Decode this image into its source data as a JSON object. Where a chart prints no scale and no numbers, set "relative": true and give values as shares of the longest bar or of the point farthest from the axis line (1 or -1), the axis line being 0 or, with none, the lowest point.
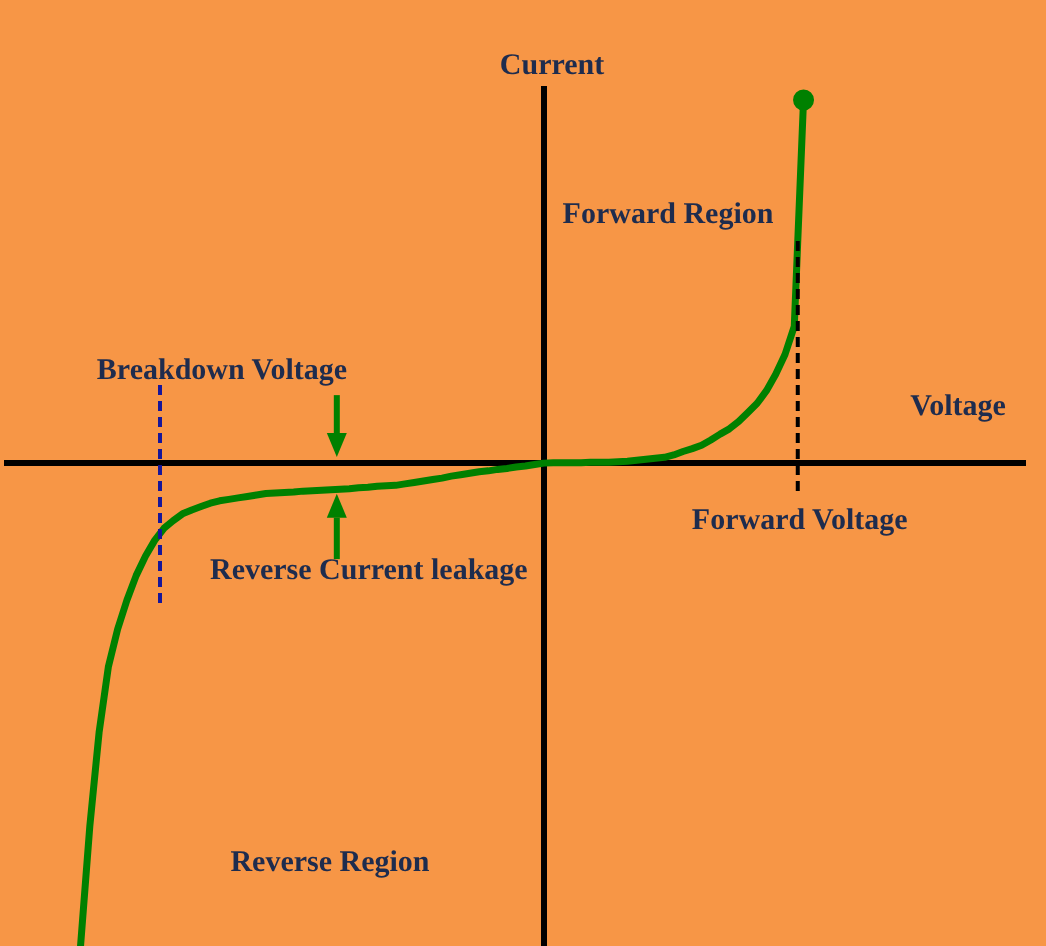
{
  "chart_data": {
    "type": "line",
    "relative": true,
    "xlabel": "Voltage",
    "ylabel": "Current",
    "categories": [
      null,
      null,
      null,
      null,
      null,
      null,
      null,
      null,
      null,
      null,
      null,
      null,
      null,
      null,
      null,
      null,
      null,
      null,
      null,
      null,
      null,
      null,
      null,
      null,
      null,
      null,
      null,
      null,
      null,
      null,
      null,
      null,
      null,
      null,
      null,
      null,
      null,
      null,
      null,
      null,
      null,
      null,
      null,
      null,
      null,
      null,
      null,
      null,
      null,
      null,
      null,
      null,
      null,
      null,
      null,
      null,
      null,
      null,
      null,
      null,
      null,
      null,
      null,
      null,
      null,
      null,
      null,
      null,
      null,
      null,
      null,
      null,
      null,
      null,
      null,
      null,
      null,
      null,
      null,
      null,
      null,
      null,
      null,
      null,
      null,
      null,
      null,
      null,
      null,
      null,
      null,
      null,
      null,
      null,
      null,
      null,
      null,
      null,
      null,
      null,
      null,
      null,
      null,
      null,
      null
    ],
    "series": [
      {
        "color": "#008000",
        "values": [
          null,
          null,
          -1.0,
          -0.752,
          -0.558,
          -0.422,
          -0.344,
          -0.284,
          -0.233,
          -0.193,
          -0.16,
          -0.135,
          -0.119,
          -0.105,
          -0.097,
          -0.09,
          -0.083,
          -0.078,
          -0.075,
          -0.072,
          -0.069,
          -0.066,
          -0.063,
          -0.062,
          -0.061,
          -0.06,
          -0.058,
          -0.057,
          -0.056,
          -0.055,
          -0.054,
          -0.053,
          -0.051,
          -0.05,
          -0.048,
          -0.047,
          -0.046,
          -0.043,
          -0.04,
          -0.037,
          -0.034,
          -0.031,
          -0.027,
          -0.024,
          -0.021,
          -0.018,
          -0.016,
          -0.013,
          -0.011,
          -0.008,
          -0.006,
          -0.003,
          0,
          0.001,
          0.001,
          0.001,
          0.001,
          0.002,
          0.002,
          0.002,
          0.003,
          0.004,
          0.006,
          0.008,
          0.01,
          0.012,
          0.017,
          0.024,
          0.03,
          0.037,
          0.048,
          0.06,
          0.071,
          0.086,
          0.105,
          0.124,
          0.15,
          0.184,
          0.225,
          0.283,
          0.752,
          null,
          null,
          null,
          null,
          null,
          null,
          null,
          null,
          null,
          null,
          null,
          null,
          null,
          null,
          null,
          null,
          null,
          null,
          null,
          null,
          null,
          null,
          null,
          null
        ]
      }
    ],
    "annotations": [
      "Forward Region",
      "Breakdown Voltage",
      {
        "text": "Reverse Current leakage",
        "y": -0.055
      },
      {
        "text": "Forward Voltage",
        "y": 0.46
      },
      "Reverse Region"
    ]
  }
}
